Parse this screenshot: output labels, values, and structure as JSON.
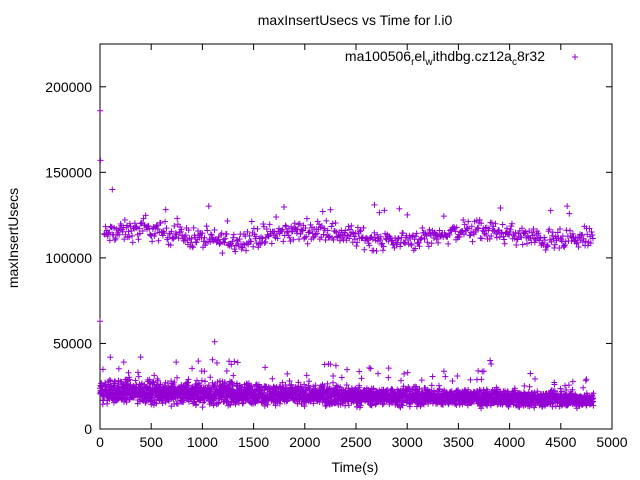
{
  "chart_data": {
    "type": "scatter",
    "title": "maxInsertUsecs vs Time for l.i0",
    "xlabel": "Time(s)",
    "ylabel": "maxInsertUsecs",
    "xlim": [
      0,
      5000
    ],
    "ylim": [
      0,
      225000
    ],
    "xticks": [
      0,
      500,
      1000,
      1500,
      2000,
      2500,
      3000,
      3500,
      4000,
      4500,
      5000
    ],
    "yticks": [
      0,
      50000,
      100000,
      150000,
      200000
    ],
    "grid": false,
    "legend_position": "top-right",
    "series": [
      {
        "name_parts": [
          "ma100506",
          "r",
          "el",
          "w",
          "ithdbg.cz12a",
          "c",
          "8r32"
        ],
        "color": "#9400d3",
        "marker": "plus",
        "outliers": [
          {
            "x": 2,
            "y": 186000
          },
          {
            "x": 5,
            "y": 157000
          },
          {
            "x": 0,
            "y": 63000
          },
          {
            "x": 120,
            "y": 140000
          },
          {
            "x": 1120,
            "y": 51000
          },
          {
            "x": 2680,
            "y": 131000
          },
          {
            "x": 3810,
            "y": 40000
          },
          {
            "x": 3820,
            "y": 38000
          }
        ],
        "band_upper": {
          "x_start": 40,
          "x_end": 4820,
          "y_center": 113000,
          "y_spread": 9000,
          "spikes_to": 131000
        },
        "band_lower": {
          "x_start": 0,
          "x_end": 4820,
          "y_center_start": 22000,
          "y_center_end": 17000,
          "y_spread_start": 10000,
          "y_spread_end": 6000,
          "spikes_to": 44000
        }
      }
    ]
  }
}
